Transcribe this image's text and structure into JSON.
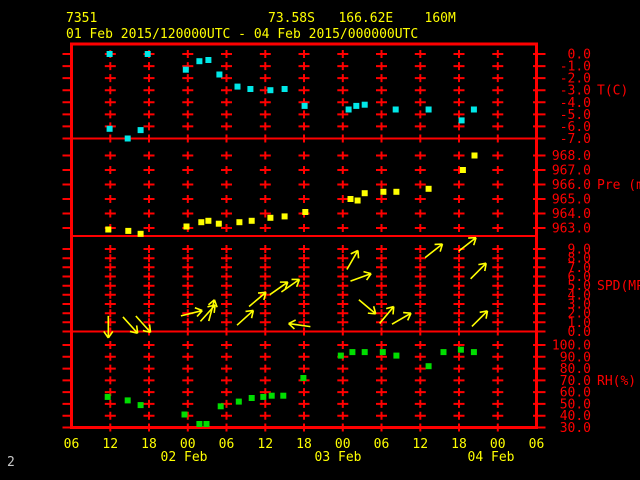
{
  "header": {
    "station_id": "7351",
    "location": "73.58S   166.62E    160M",
    "period": "01 Feb 2015/120000UTC - 04 Feb 2015/000000UTC"
  },
  "page_number": "2",
  "colors": {
    "background": "#000000",
    "grid": "#ff0000",
    "axis_text": "#ff0000",
    "time_text": "#ffff00",
    "temperature_marker": "#00e8e8",
    "pressure_marker": "#ffff00",
    "wind_arrow": "#ffff00",
    "humidity_marker": "#00dd00",
    "page_number_text": "#c8c8c8"
  },
  "chart_data": {
    "type": "scatter",
    "title": "Station 7351 meteogram 01 Feb 2015 12UTC - 04 Feb 2015 00UTC",
    "x_hours": {
      "t0_label": "01 Feb 2015 06UTC",
      "span_hours": 72,
      "tick_interval_hours": 6,
      "labels": [
        "06",
        "12",
        "18",
        "00",
        "06",
        "12",
        "18",
        "00",
        "06",
        "12",
        "18",
        "00",
        "06"
      ],
      "dates": [
        "02 Feb",
        "03 Feb",
        "04 Feb"
      ]
    },
    "panels": [
      {
        "id": "temperature",
        "label": "T(C)",
        "ticks": [
          0.0,
          -1.0,
          -2.0,
          -3.0,
          -4.0,
          -5.0,
          -6.0,
          -7.0
        ],
        "label_tick": -3.0,
        "ylim": [
          0.0,
          -7.0
        ],
        "marker_color": "#00e8e8",
        "points": [
          [
            5.9,
            0.0
          ],
          [
            5.9,
            -6.2
          ],
          [
            8.7,
            -7.0
          ],
          [
            10.7,
            -6.3
          ],
          [
            11.8,
            0.0
          ],
          [
            17.7,
            -1.3
          ],
          [
            19.8,
            -0.6
          ],
          [
            21.2,
            -0.5
          ],
          [
            22.9,
            -1.7
          ],
          [
            25.7,
            -2.7
          ],
          [
            27.7,
            -2.9
          ],
          [
            30.8,
            -3.0
          ],
          [
            33.0,
            -2.9
          ],
          [
            36.1,
            -4.3
          ],
          [
            42.9,
            -4.6
          ],
          [
            44.1,
            -4.3
          ],
          [
            45.4,
            -4.2
          ],
          [
            50.2,
            -4.6
          ],
          [
            55.3,
            -4.6
          ],
          [
            60.4,
            -5.5
          ],
          [
            62.3,
            -4.6
          ]
        ]
      },
      {
        "id": "pressure",
        "label": "Pre (mb)",
        "ticks": [
          968.0,
          967.0,
          966.0,
          965.0,
          964.0,
          963.0
        ],
        "label_tick": 966.0,
        "ylim": [
          968.0,
          963.0
        ],
        "marker_color": "#ffff00",
        "points": [
          [
            5.7,
            962.9
          ],
          [
            8.8,
            962.8
          ],
          [
            10.7,
            962.6
          ],
          [
            17.8,
            963.1
          ],
          [
            20.1,
            963.4
          ],
          [
            21.2,
            963.5
          ],
          [
            22.8,
            963.3
          ],
          [
            26.0,
            963.4
          ],
          [
            27.9,
            963.5
          ],
          [
            30.8,
            963.7
          ],
          [
            33.0,
            963.8
          ],
          [
            36.2,
            964.1
          ],
          [
            43.2,
            965.0
          ],
          [
            44.3,
            964.9
          ],
          [
            45.4,
            965.4
          ],
          [
            48.3,
            965.5
          ],
          [
            50.3,
            965.5
          ],
          [
            55.3,
            965.7
          ],
          [
            60.6,
            967.0
          ],
          [
            62.4,
            968.0
          ]
        ]
      },
      {
        "id": "wind_speed",
        "label": "SPD(MPS)",
        "ticks": [
          9.0,
          8.0,
          7.0,
          6.0,
          5.0,
          4.0,
          3.0,
          2.0,
          1.0,
          0.0
        ],
        "label_tick": 5.0,
        "ylim": [
          9.0,
          0.0
        ],
        "marker_color": "#ffff00",
        "arrow_note": "entries are [hours_from_t0, speed_mps, direction_deg_ccw_from_east]",
        "arrows": [
          [
            5.7,
            0.5,
            -90
          ],
          [
            9.1,
            0.7,
            -48
          ],
          [
            11.1,
            0.8,
            -48
          ],
          [
            18.6,
            2.0,
            14
          ],
          [
            21.1,
            2.0,
            48
          ],
          [
            21.7,
            2.3,
            75
          ],
          [
            26.9,
            1.5,
            42
          ],
          [
            28.8,
            3.5,
            40
          ],
          [
            32.1,
            4.7,
            35
          ],
          [
            33.9,
            5.0,
            35
          ],
          [
            35.3,
            0.7,
            172
          ],
          [
            43.5,
            7.8,
            60
          ],
          [
            44.8,
            5.9,
            20
          ],
          [
            45.8,
            2.7,
            -40
          ],
          [
            48.8,
            1.8,
            50
          ],
          [
            51.1,
            1.4,
            30
          ],
          [
            56.1,
            8.8,
            38
          ],
          [
            61.3,
            9.5,
            38
          ],
          [
            63.0,
            6.6,
            45
          ],
          [
            63.2,
            1.4,
            45
          ]
        ]
      },
      {
        "id": "humidity",
        "label": "RH(%)",
        "ticks": [
          100.0,
          90.0,
          80.0,
          70.0,
          60.0,
          50.0,
          40.0,
          30.0
        ],
        "label_tick": 70.0,
        "ylim": [
          100.0,
          30.0
        ],
        "marker_color": "#00dd00",
        "points": [
          [
            5.6,
            56
          ],
          [
            8.7,
            53
          ],
          [
            10.7,
            49
          ],
          [
            17.5,
            41
          ],
          [
            19.8,
            33
          ],
          [
            20.9,
            33
          ],
          [
            23.1,
            48
          ],
          [
            25.9,
            52
          ],
          [
            27.9,
            55
          ],
          [
            29.7,
            56
          ],
          [
            31.0,
            57
          ],
          [
            32.8,
            57
          ],
          [
            35.9,
            72
          ],
          [
            41.7,
            91
          ],
          [
            43.5,
            94
          ],
          [
            45.4,
            94
          ],
          [
            48.2,
            94
          ],
          [
            50.3,
            91
          ],
          [
            55.3,
            82
          ],
          [
            57.6,
            94
          ],
          [
            60.3,
            96
          ],
          [
            62.3,
            94
          ]
        ]
      }
    ]
  }
}
